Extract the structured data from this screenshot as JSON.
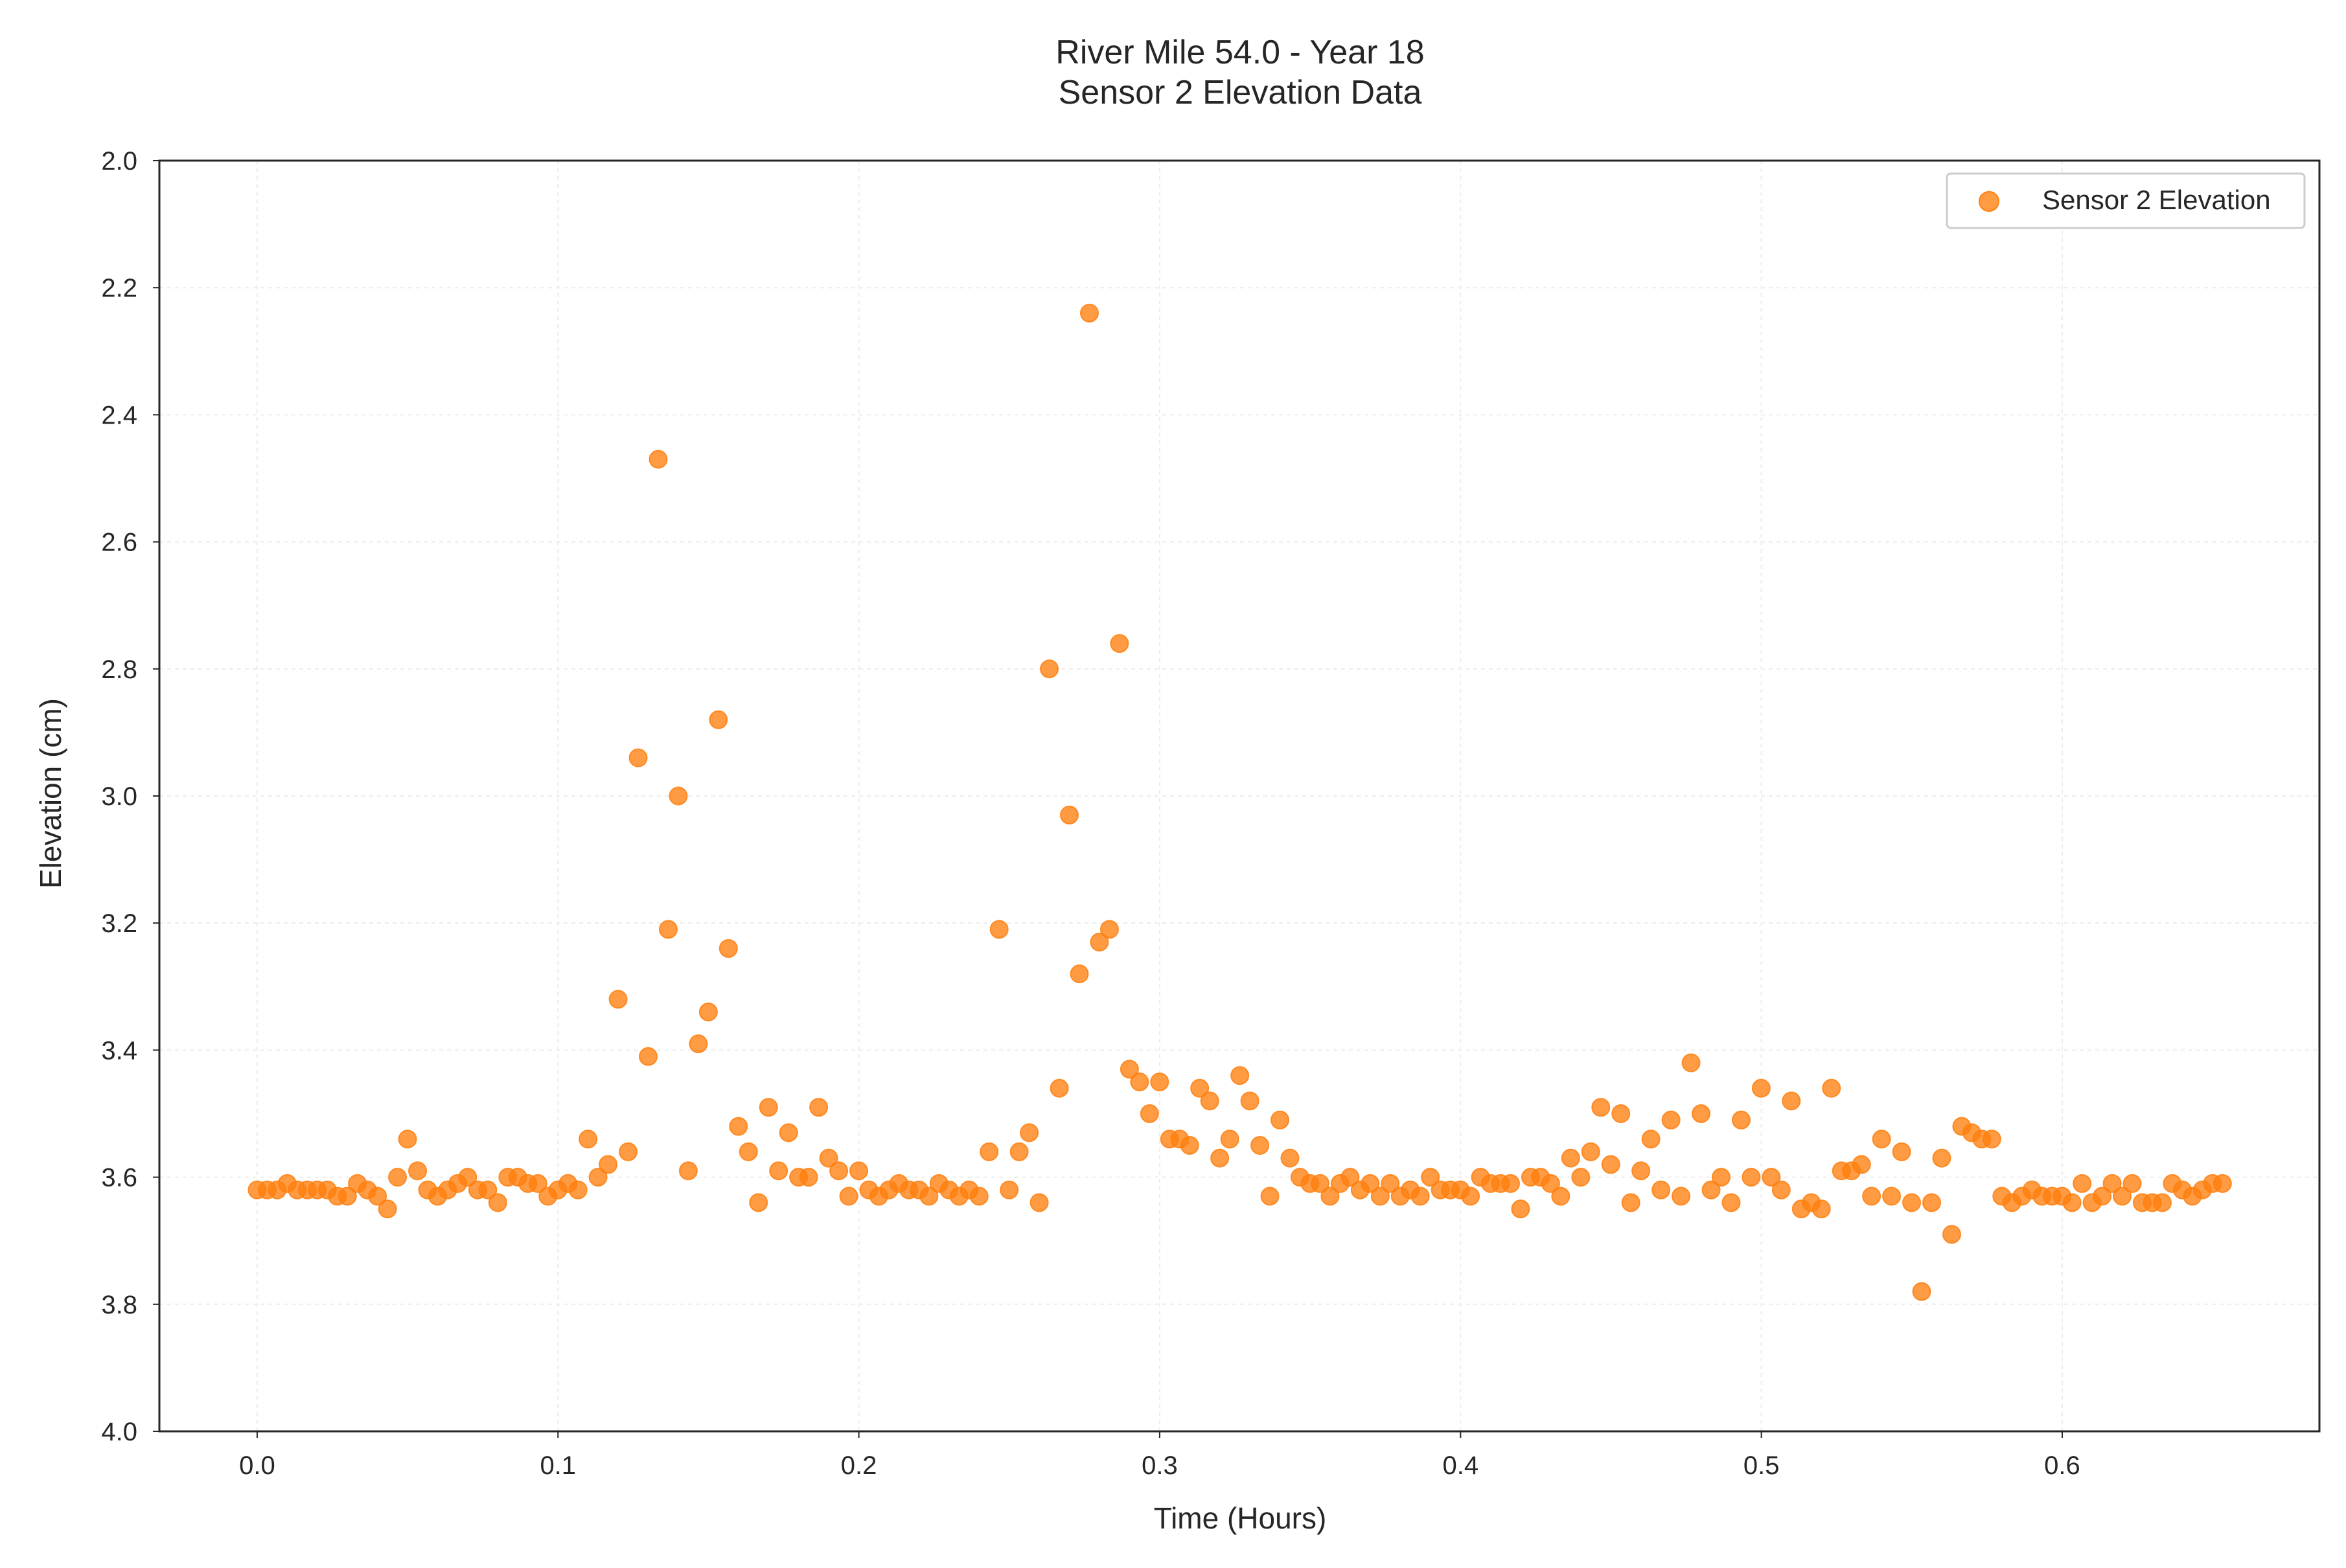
{
  "chart_data": {
    "type": "scatter",
    "title": "River Mile 54.0 - Year 18",
    "subtitle": "Sensor 2 Elevation Data",
    "xlabel": "Time (Hours)",
    "ylabel": "Elevation (cm)",
    "xlim": [
      -0.0325,
      0.6855
    ],
    "ylim": [
      4.0,
      2.0
    ],
    "y_inverted": true,
    "xticks": [
      "0.0",
      "0.1",
      "0.2",
      "0.3",
      "0.4",
      "0.5",
      "0.6"
    ],
    "yticks": [
      "2.0",
      "2.2",
      "2.4",
      "2.6",
      "2.8",
      "3.0",
      "3.2",
      "3.4",
      "3.6",
      "3.8",
      "4.0"
    ],
    "grid": true,
    "legend_position": "top-right",
    "marker_color": "#ff7f0e",
    "series": [
      {
        "name": "Sensor 2 Elevation",
        "x_start": 0.0,
        "x_step": 0.003333,
        "values": [
          3.62,
          3.62,
          3.62,
          3.61,
          3.62,
          3.62,
          3.62,
          3.62,
          3.63,
          3.63,
          3.61,
          3.62,
          3.63,
          3.65,
          3.6,
          3.54,
          3.59,
          3.62,
          3.63,
          3.62,
          3.61,
          3.6,
          3.62,
          3.62,
          3.64,
          3.6,
          3.6,
          3.61,
          3.61,
          3.63,
          3.62,
          3.61,
          3.62,
          3.54,
          3.6,
          3.58,
          3.32,
          3.56,
          2.94,
          3.41,
          2.47,
          3.21,
          3.0,
          3.59,
          3.39,
          3.34,
          2.88,
          3.24,
          3.52,
          3.56,
          3.64,
          3.49,
          3.59,
          3.53,
          3.6,
          3.6,
          3.49,
          3.57,
          3.59,
          3.63,
          3.59,
          3.62,
          3.63,
          3.62,
          3.61,
          3.62,
          3.62,
          3.63,
          3.61,
          3.62,
          3.63,
          3.62,
          3.63,
          3.56,
          3.21,
          3.62,
          3.56,
          3.53,
          3.64,
          2.8,
          3.46,
          3.03,
          3.28,
          2.24,
          3.23,
          3.21,
          2.76,
          3.43,
          3.45,
          3.5,
          3.45,
          3.54,
          3.54,
          3.55,
          3.46,
          3.48,
          3.57,
          3.54,
          3.44,
          3.48,
          3.55,
          3.63,
          3.51,
          3.57,
          3.6,
          3.61,
          3.61,
          3.63,
          3.61,
          3.6,
          3.62,
          3.61,
          3.63,
          3.61,
          3.63,
          3.62,
          3.63,
          3.6,
          3.62,
          3.62,
          3.62,
          3.63,
          3.6,
          3.61,
          3.61,
          3.61,
          3.65,
          3.6,
          3.6,
          3.61,
          3.63,
          3.57,
          3.6,
          3.56,
          3.49,
          3.58,
          3.5,
          3.64,
          3.59,
          3.54,
          3.62,
          3.51,
          3.63,
          3.42,
          3.5,
          3.62,
          3.6,
          3.64,
          3.51,
          3.6,
          3.46,
          3.6,
          3.62,
          3.48,
          3.65,
          3.64,
          3.65,
          3.46,
          3.59,
          3.59,
          3.58,
          3.63,
          3.54,
          3.63,
          3.56,
          3.64,
          3.78,
          3.64,
          3.57,
          3.69,
          3.52,
          3.53,
          3.54,
          3.54,
          3.63,
          3.64,
          3.63,
          3.62,
          3.63,
          3.63,
          3.63,
          3.64,
          3.61,
          3.64,
          3.63,
          3.61,
          3.63,
          3.61,
          3.64,
          3.64,
          3.64,
          3.61,
          3.62,
          3.63,
          3.62,
          3.61,
          3.61
        ]
      }
    ]
  }
}
